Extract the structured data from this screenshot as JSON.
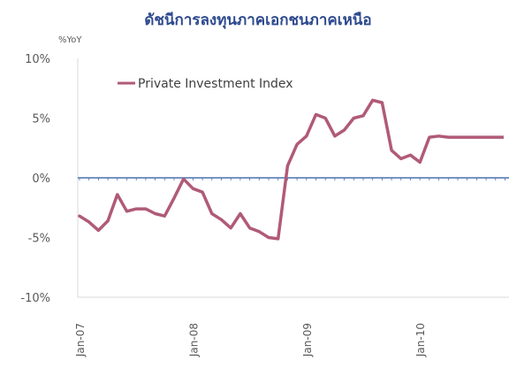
{
  "chart_data": {
    "type": "line",
    "title": "ดัชนีการลงทุนภาคเอกชนภาคเหนือ",
    "ylabel": "%YoY",
    "ylim": [
      -10,
      10
    ],
    "yticks": [
      10,
      5,
      0,
      -5,
      -10
    ],
    "ytick_labels": [
      "10%",
      "5%",
      "0%",
      "-5%",
      "-10%"
    ],
    "xticks": [
      {
        "x": "2007-01",
        "label": "Jan-07"
      },
      {
        "x": "2008-01",
        "label": "Jan-08"
      },
      {
        "x": "2009-01",
        "label": "Jan-09"
      },
      {
        "x": "2010-01",
        "label": "Jan-10"
      }
    ],
    "legend": {
      "position": "top-left"
    },
    "colors": {
      "series": "#b05a78",
      "zero_line": "#4a72b0",
      "axis": "#d9d9d9",
      "title": "#2e4a8f",
      "text": "#595959"
    },
    "series": [
      {
        "name": "Private Investment Index",
        "x": [
          "2007-01",
          "2007-02",
          "2007-03",
          "2007-04",
          "2007-05",
          "2007-06",
          "2007-07",
          "2007-08",
          "2007-09",
          "2007-10",
          "2007-11",
          "2007-12",
          "2008-01",
          "2008-02",
          "2008-03",
          "2008-04",
          "2008-05",
          "2008-06",
          "2008-07",
          "2008-08",
          "2008-09",
          "2008-10",
          "2008-11",
          "2008-12",
          "2009-01",
          "2009-02",
          "2009-03",
          "2009-04",
          "2009-05",
          "2009-06",
          "2009-07",
          "2009-08",
          "2009-09",
          "2009-10",
          "2009-11",
          "2009-12",
          "2010-01",
          "2010-02",
          "2010-03",
          "2010-04",
          "2010-05",
          "2010-06",
          "2010-07",
          "2010-08",
          "2010-09",
          "2010-10",
          "2010-11",
          "2010-12"
        ],
        "values": [
          -3.2,
          -3.7,
          -4.4,
          -3.6,
          -1.4,
          -2.8,
          -2.6,
          -2.6,
          -3.0,
          -3.2,
          -1.7,
          -0.1,
          -0.9,
          -1.2,
          -3.0,
          -3.5,
          -4.2,
          -3.0,
          -4.2,
          -4.5,
          -5.0,
          -5.1,
          1.0,
          2.8,
          3.5,
          5.3,
          5.0,
          3.5,
          4.0,
          5.0,
          5.2,
          6.5,
          6.3,
          2.3,
          1.6,
          1.9,
          1.3,
          3.4,
          3.5,
          3.4,
          3.4,
          3.4,
          3.4,
          3.4,
          3.4,
          3.4,
          3.4,
          3.4
        ]
      }
    ]
  }
}
